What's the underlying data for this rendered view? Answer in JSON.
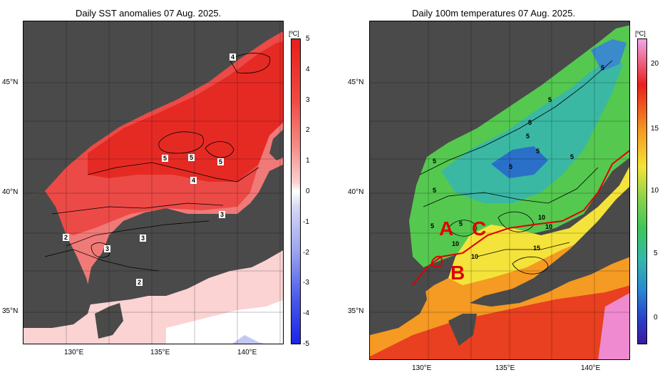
{
  "left_panel": {
    "title": "Daily SST anomalies 07 Aug. 2025.",
    "unit": "[ºC]",
    "colorbar_ticks": [
      "5",
      "4",
      "3",
      "2",
      "1",
      "0",
      "-1",
      "-2",
      "-3",
      "-4",
      "-5"
    ],
    "lat_labels": [
      "45°N",
      "40°N",
      "35°N"
    ],
    "lon_labels": [
      "130°E",
      "135°E",
      "140°E"
    ],
    "contour_labels": [
      "4",
      "5",
      "5",
      "5",
      "4",
      "3",
      "3",
      "3",
      "2",
      "2"
    ]
  },
  "right_panel": {
    "title": "Daily 100m temperatures 07 Aug. 2025.",
    "unit": "[ºC]",
    "colorbar_ticks": [
      "20",
      "15",
      "10",
      "5",
      "0"
    ],
    "lat_labels": [
      "45°N",
      "40°N",
      "35°N"
    ],
    "lon_labels": [
      "130°E",
      "135°E",
      "140°E"
    ],
    "contour_labels": [
      "5",
      "5",
      "5",
      "5",
      "5",
      "5",
      "5",
      "5",
      "5",
      "5",
      "5",
      "10",
      "10",
      "10",
      "10",
      "15"
    ],
    "region_labels": [
      "A",
      "B",
      "C"
    ]
  },
  "colors": {
    "land": "#4a4a4a",
    "anomaly_high": "#e8201e",
    "anomaly_mid": "#f57f7f",
    "anomaly_low": "#fbd3d3",
    "polar_front": "#e00000",
    "region_label": "#e00000"
  }
}
